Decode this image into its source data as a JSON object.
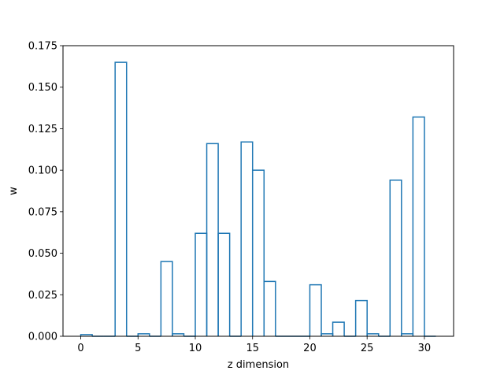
{
  "chart_data": {
    "type": "histogram",
    "title": "",
    "xlabel": "z dimension",
    "ylabel": "w",
    "xlim": [
      -1.55,
      32.55
    ],
    "ylim": [
      0,
      0.175
    ],
    "xticks": [
      0,
      5,
      10,
      15,
      20,
      25,
      30
    ],
    "yticks": [
      0.0,
      0.025,
      0.05,
      0.075,
      0.1,
      0.125,
      0.15,
      0.175
    ],
    "ytick_labels": [
      "0.000",
      "0.025",
      "0.050",
      "0.075",
      "0.100",
      "0.125",
      "0.150",
      "0.175"
    ],
    "grid": false,
    "line_color": "#1f77b4",
    "bins": [
      {
        "x": 0,
        "w": 0.001
      },
      {
        "x": 1,
        "w": 0
      },
      {
        "x": 2,
        "w": 0
      },
      {
        "x": 3,
        "w": 0.165
      },
      {
        "x": 4,
        "w": 0
      },
      {
        "x": 5,
        "w": 0.0015
      },
      {
        "x": 6,
        "w": 0
      },
      {
        "x": 7,
        "w": 0.045
      },
      {
        "x": 8,
        "w": 0.0015
      },
      {
        "x": 9,
        "w": 0
      },
      {
        "x": 10,
        "w": 0.062
      },
      {
        "x": 11,
        "w": 0.116
      },
      {
        "x": 12,
        "w": 0.062
      },
      {
        "x": 13,
        "w": 0
      },
      {
        "x": 14,
        "w": 0.117
      },
      {
        "x": 15,
        "w": 0.1
      },
      {
        "x": 16,
        "w": 0.033
      },
      {
        "x": 17,
        "w": 0
      },
      {
        "x": 18,
        "w": 0
      },
      {
        "x": 19,
        "w": 0
      },
      {
        "x": 20,
        "w": 0.031
      },
      {
        "x": 21,
        "w": 0.0015
      },
      {
        "x": 22,
        "w": 0.0085
      },
      {
        "x": 23,
        "w": 0
      },
      {
        "x": 24,
        "w": 0.0215
      },
      {
        "x": 25,
        "w": 0.0015
      },
      {
        "x": 26,
        "w": 0
      },
      {
        "x": 27,
        "w": 0.094
      },
      {
        "x": 28,
        "w": 0.0015
      },
      {
        "x": 29,
        "w": 0.132
      },
      {
        "x": 30,
        "w": 0
      }
    ]
  }
}
